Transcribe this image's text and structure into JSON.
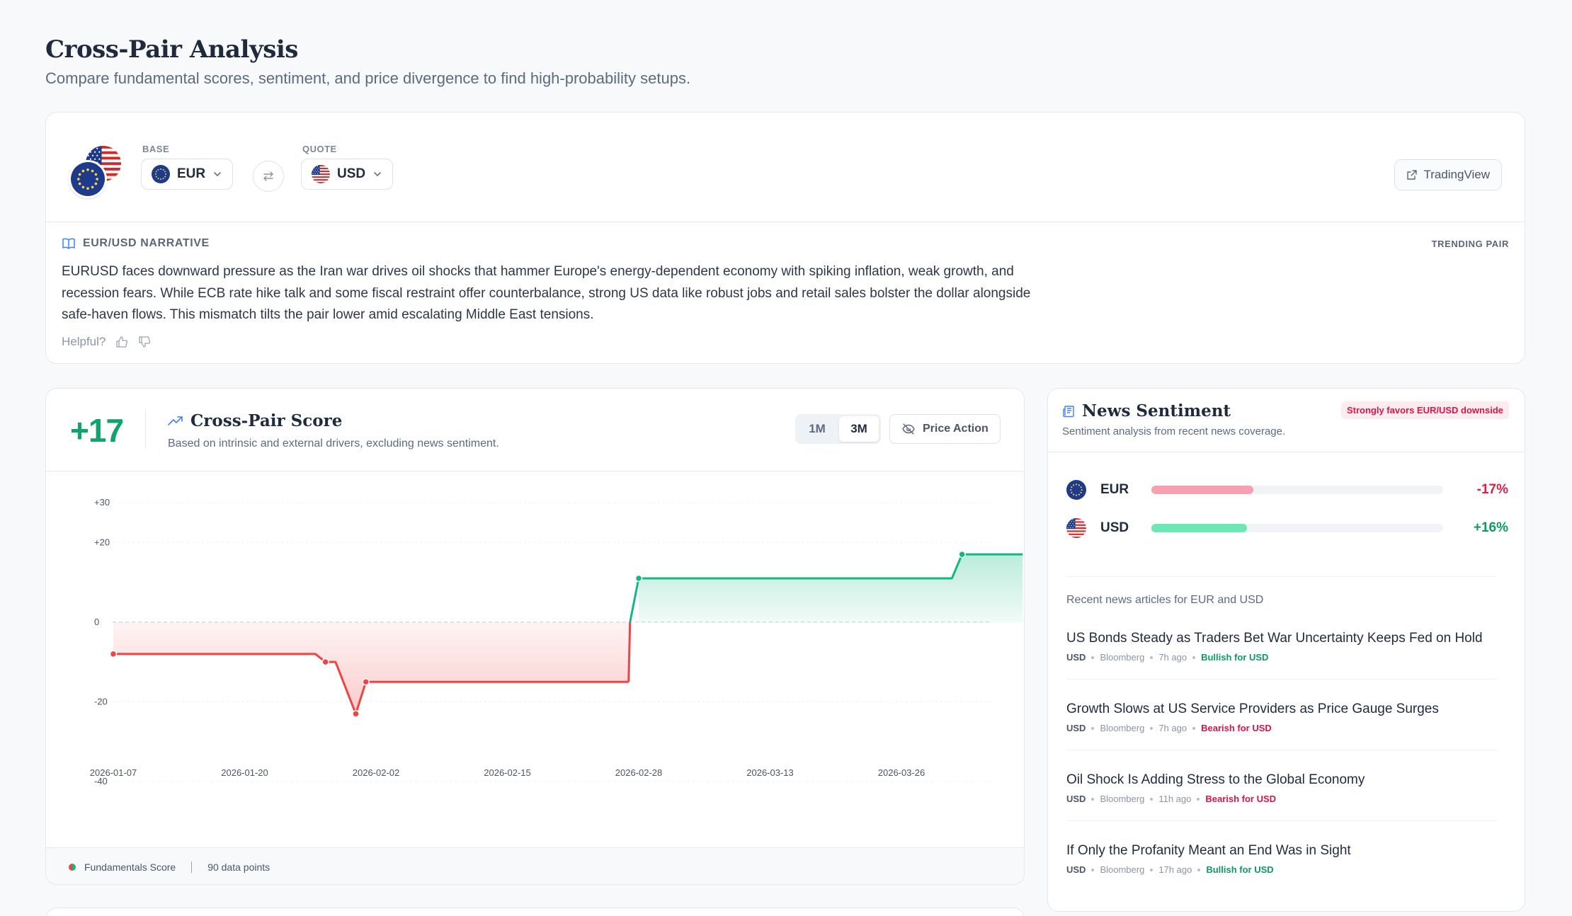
{
  "page": {
    "title": "Cross-Pair Analysis",
    "subtitle": "Compare fundamental scores, sentiment, and price divergence to find high-probability setups."
  },
  "pair": {
    "base_label": "BASE",
    "base_code": "EUR",
    "quote_label": "QUOTE",
    "quote_code": "USD",
    "tradingview_label": "TradingView",
    "narrative_title": "EUR/USD NARRATIVE",
    "trending_tag": "TRENDING PAIR",
    "narrative_text": "EURUSD faces downward pressure as the Iran war drives oil shocks that hammer Europe's energy-dependent economy with spiking inflation, weak growth, and recession fears. While ECB rate hike talk and some fiscal restraint offer counterbalance, strong US data like robust jobs and retail sales bolster the dollar alongside safe-haven flows. This mismatch tilts the pair lower amid escalating Middle East tensions.",
    "helpful_label": "Helpful?"
  },
  "score": {
    "value": "+17",
    "title": "Cross-Pair Score",
    "description": "Based on intrinsic and external drivers, excluding news sentiment.",
    "range_options": [
      "1M",
      "3M"
    ],
    "range_selected": "3M",
    "price_action_label": "Price Action",
    "legend_label": "Fundamentals Score",
    "data_points_label": "90 data points"
  },
  "chart_data": {
    "type": "area",
    "title": "",
    "xlabel": "",
    "ylabel": "",
    "ylim": [
      -40,
      30
    ],
    "y_ticks": [
      "+30",
      "+20",
      "0",
      "-20",
      "-40"
    ],
    "x_tick_labels": [
      "2026-01-07",
      "2026-01-20",
      "2026-02-02",
      "2026-02-15",
      "2026-02-28",
      "2026-03-13",
      "2026-03-26"
    ],
    "grid": true,
    "series": [
      {
        "name": "Fundamentals Score",
        "points": [
          [
            "2026-01-07",
            -8
          ],
          [
            "2026-01-27",
            -8
          ],
          [
            "2026-01-28",
            -10
          ],
          [
            "2026-01-29",
            -10
          ],
          [
            "2026-01-31",
            -23
          ],
          [
            "2026-02-01",
            -15
          ],
          [
            "2026-02-27",
            -15
          ],
          [
            "2026-02-28",
            11
          ],
          [
            "2026-03-31",
            11
          ],
          [
            "2026-04-01",
            17
          ],
          [
            "2026-04-07",
            17
          ]
        ],
        "markers": [
          [
            "2026-01-07",
            -8
          ],
          [
            "2026-01-28",
            -10
          ],
          [
            "2026-01-31",
            -23
          ],
          [
            "2026-02-01",
            -15
          ],
          [
            "2026-02-28",
            11
          ],
          [
            "2026-04-01",
            17
          ]
        ]
      }
    ],
    "colors": {
      "positive": "#10b981",
      "negative": "#ef4444"
    }
  },
  "news": {
    "title": "News Sentiment",
    "badge": "Strongly favors EUR/USD downside",
    "description": "Sentiment analysis from recent news coverage.",
    "sentiments": [
      {
        "code": "EUR",
        "value": "-17%",
        "magnitude": 0.17,
        "color": "#f8a0b0",
        "text_color": "#e11d48"
      },
      {
        "code": "USD",
        "value": "+16%",
        "magnitude": 0.16,
        "color": "#6ee7b7",
        "text_color": "#0d9a63"
      }
    ],
    "recent_label": "Recent news articles for EUR and USD",
    "articles": [
      {
        "title": "US Bonds Steady as Traders Bet War Uncertainty Keeps Fed on Hold",
        "ccy": "USD",
        "source": "Bloomberg",
        "time": "7h ago",
        "impact": "Bullish for USD"
      },
      {
        "title": "Growth Slows at US Service Providers as Price Gauge Surges",
        "ccy": "USD",
        "source": "Bloomberg",
        "time": "7h ago",
        "impact": "Bearish for USD"
      },
      {
        "title": "Oil Shock Is Adding Stress to the Global Economy",
        "ccy": "USD",
        "source": "Bloomberg",
        "time": "11h ago",
        "impact": "Bearish for USD"
      },
      {
        "title": "If Only the Profanity Meant an End Was in Sight",
        "ccy": "USD",
        "source": "Bloomberg",
        "time": "17h ago",
        "impact": "Bullish for USD"
      }
    ]
  },
  "icons": [
    "eu-flag-icon",
    "us-flag-icon",
    "swap-icon",
    "external-link-icon",
    "book-icon",
    "thumbs-up-icon",
    "thumbs-down-icon",
    "trend-up-icon",
    "eye-off-icon",
    "newspaper-icon",
    "chevron-down-icon"
  ]
}
